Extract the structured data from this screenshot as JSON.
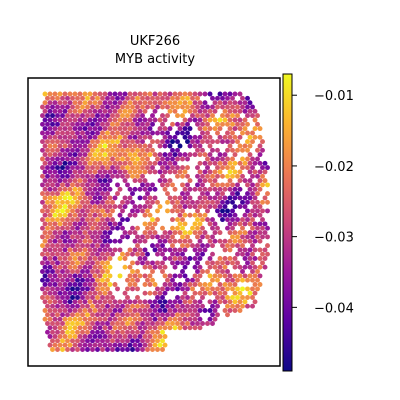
{
  "chart_data": {
    "type": "heatmap",
    "subtype": "spatial-hexbin",
    "title_lines": [
      "UKF266",
      "MYB activity"
    ],
    "xlabel": "",
    "ylabel": "",
    "x_ticks_shown": false,
    "y_ticks_shown": false,
    "grid": false,
    "colormap": "plasma",
    "colorbar": {
      "placement": "right",
      "range": [
        -0.049,
        -0.007
      ],
      "ticks": [
        -0.01,
        -0.02,
        -0.03,
        -0.04
      ],
      "tick_labels": [
        "−0.01",
        "−0.02",
        "−0.03",
        "−0.04"
      ]
    },
    "value_range": [
      -0.049,
      -0.007
    ],
    "colors": {
      "plasma_stops": [
        "#0d0887",
        "#5b02a3",
        "#9a179b",
        "#cb4678",
        "#eb7852",
        "#fbb32f",
        "#eff821"
      ]
    }
  }
}
